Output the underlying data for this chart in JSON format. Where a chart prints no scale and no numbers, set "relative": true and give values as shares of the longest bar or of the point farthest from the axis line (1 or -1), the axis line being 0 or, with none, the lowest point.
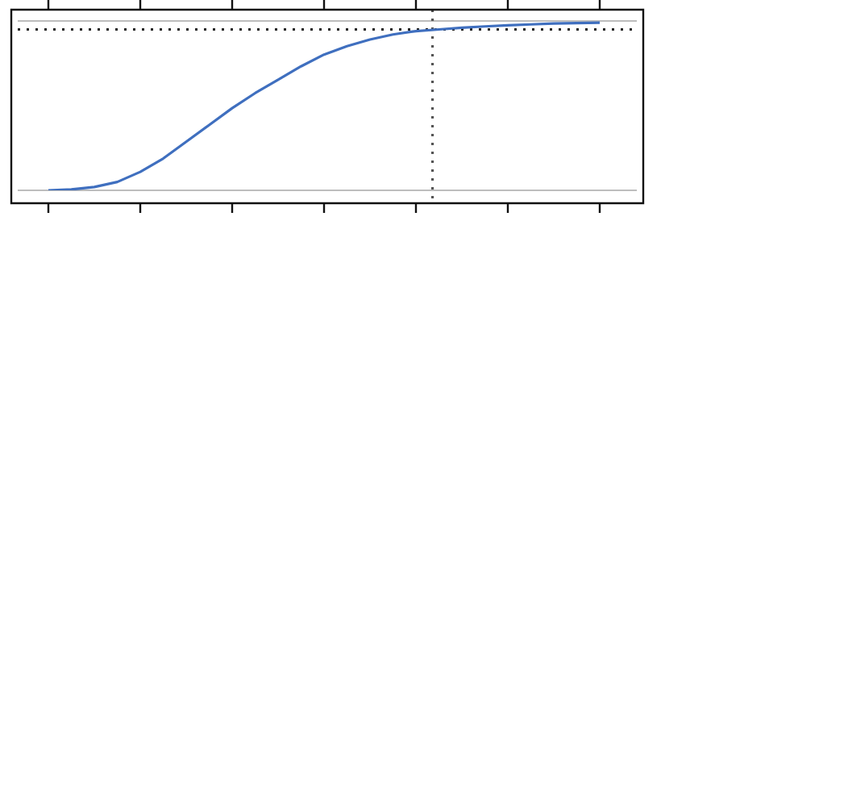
{
  "chart_data": {
    "type": "line",
    "relative": true,
    "tick_labels": false,
    "marker": "none",
    "line_style": "solid",
    "categories": [
      null,
      null,
      null,
      null,
      null,
      null,
      null,
      null,
      null,
      null,
      null,
      null,
      null,
      null,
      null,
      null,
      null,
      null,
      null,
      null,
      null,
      null,
      null,
      null,
      null
    ],
    "series": [
      {
        "color": "#3f6fbf",
        "values": [
          0,
          0.005,
          0.02,
          0.05,
          0.11,
          0.19,
          0.29,
          0.39,
          0.49,
          0.58,
          0.66,
          0.74,
          0.81,
          0.86,
          0.9,
          0.93,
          0.95,
          0.96,
          0.97,
          0.978,
          0.985,
          0.99,
          0.995,
          0.998,
          1
        ]
      }
    ],
    "ref_lines": [
      {
        "axis": "y",
        "value": 0,
        "color": "#bdbdbd",
        "line_style": "solid"
      },
      {
        "axis": "y",
        "value": 1.01,
        "color": "#bdbdbd",
        "line_style": "solid"
      },
      {
        "axis": "y",
        "value": 0.96,
        "color": "#222222",
        "line_style": "dotted"
      }
    ]
  }
}
